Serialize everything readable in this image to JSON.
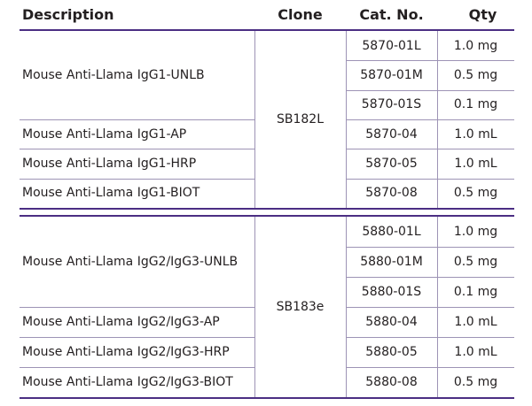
{
  "table": {
    "header": [
      "Description",
      "Clone",
      "Cat. No.",
      "Qty"
    ],
    "groups": [
      {
        "clone": "SB182L",
        "products": [
          {
            "description": "Mouse Anti-Llama IgG1-UNLB",
            "items": [
              {
                "cat": "5870-01L",
                "qty": "1.0 mg"
              },
              {
                "cat": "5870-01M",
                "qty": "0.5 mg"
              },
              {
                "cat": "5870-01S",
                "qty": "0.1 mg"
              }
            ]
          },
          {
            "description": "Mouse Anti-Llama IgG1-AP",
            "items": [
              {
                "cat": "5870-04",
                "qty": "1.0 mL"
              }
            ]
          },
          {
            "description": "Mouse Anti-Llama IgG1-HRP",
            "items": [
              {
                "cat": "5870-05",
                "qty": "1.0 mL"
              }
            ]
          },
          {
            "description": "Mouse Anti-Llama IgG1-BIOT",
            "items": [
              {
                "cat": "5870-08",
                "qty": "0.5 mg"
              }
            ]
          }
        ]
      },
      {
        "clone": "SB183e",
        "products": [
          {
            "description": "Mouse Anti-Llama IgG2/IgG3-UNLB",
            "items": [
              {
                "cat": "5880-01L",
                "qty": "1.0 mg"
              },
              {
                "cat": "5880-01M",
                "qty": "0.5 mg"
              },
              {
                "cat": "5880-01S",
                "qty": "0.1 mg"
              }
            ]
          },
          {
            "description": "Mouse Anti-Llama IgG2/IgG3-AP",
            "items": [
              {
                "cat": "5880-04",
                "qty": "1.0 mL"
              }
            ]
          },
          {
            "description": "Mouse Anti-Llama IgG2/IgG3-HRP",
            "items": [
              {
                "cat": "5880-05",
                "qty": "1.0 mL"
              }
            ]
          },
          {
            "description": "Mouse Anti-Llama IgG2/IgG3-BIOT",
            "items": [
              {
                "cat": "5880-08",
                "qty": "0.5 mg"
              }
            ]
          }
        ]
      }
    ]
  }
}
